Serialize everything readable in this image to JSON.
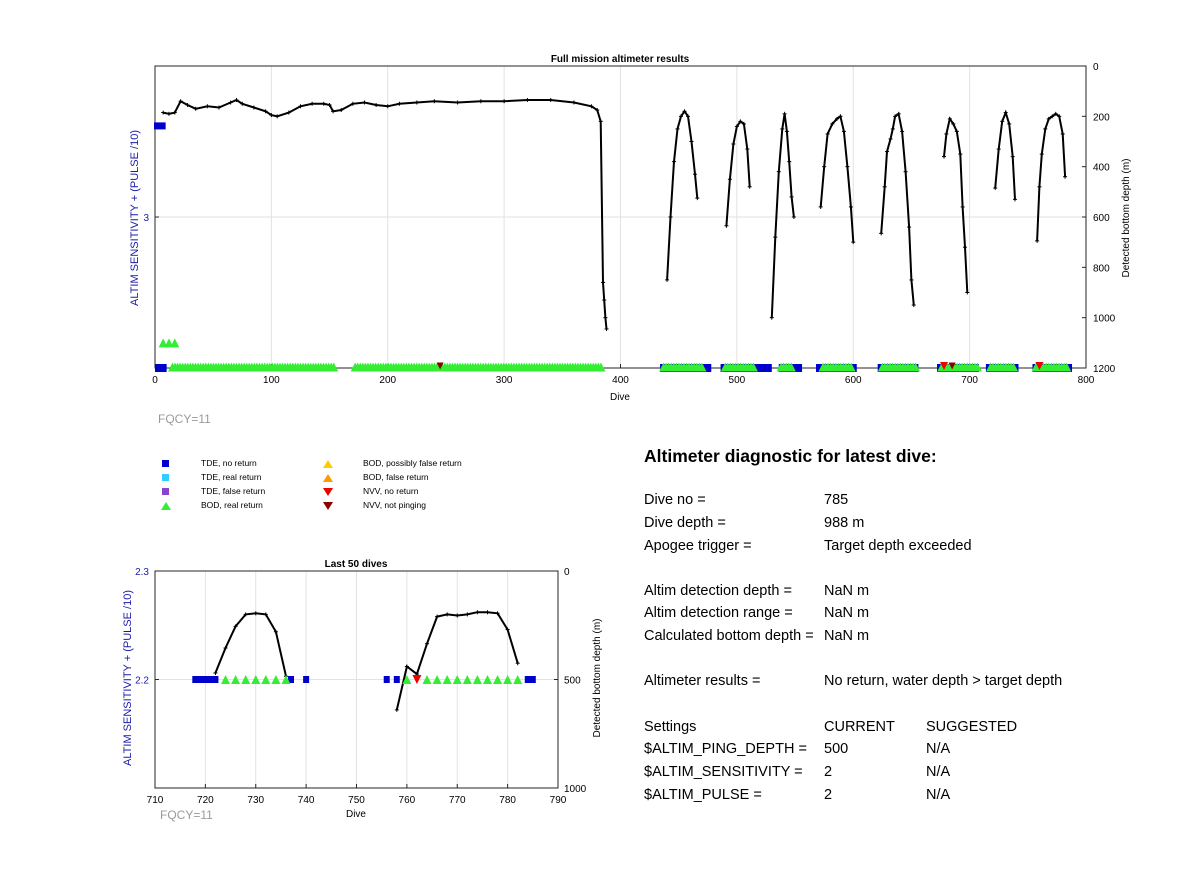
{
  "chart_data": [
    {
      "type": "scatter",
      "title": "Full mission altimeter results",
      "xlabel": "Dive",
      "ylabel_left": "ALTIM SENSITIVITY + (PULSE /10)",
      "ylabel_right": "Detected bottom depth (m)",
      "xlim": [
        0,
        800
      ],
      "ylim_left": [
        2.5,
        3.5
      ],
      "ylim_right": [
        0,
        1200
      ],
      "right_axis_reversed": true,
      "xticks": [
        "0",
        "100",
        "200",
        "300",
        "400",
        "500",
        "600",
        "700",
        "800"
      ],
      "yticks_left": [
        "3"
      ],
      "yticks_right": [
        "0",
        "200",
        "400",
        "600",
        "800",
        "1000",
        "1200"
      ],
      "grid": true,
      "fqcy_label": "FQCY=11",
      "bottom_depth_series": {
        "color": "#000000",
        "segments": [
          [
            [
              7,
              185
            ],
            [
              12,
              190
            ],
            [
              17,
              185
            ],
            [
              22,
              140
            ],
            [
              28,
              155
            ],
            [
              35,
              170
            ],
            [
              45,
              160
            ],
            [
              55,
              165
            ],
            [
              65,
              145
            ],
            [
              70,
              135
            ],
            [
              75,
              150
            ],
            [
              85,
              165
            ],
            [
              95,
              180
            ],
            [
              100,
              195
            ],
            [
              105,
              200
            ],
            [
              115,
              185
            ],
            [
              125,
              160
            ],
            [
              135,
              150
            ],
            [
              145,
              150
            ],
            [
              150,
              155
            ],
            [
              153,
              180
            ],
            [
              160,
              175
            ],
            [
              170,
              150
            ],
            [
              180,
              145
            ],
            [
              190,
              155
            ],
            [
              200,
              160
            ],
            [
              210,
              150
            ],
            [
              225,
              145
            ],
            [
              240,
              140
            ],
            [
              260,
              145
            ],
            [
              280,
              140
            ],
            [
              300,
              140
            ],
            [
              320,
              135
            ],
            [
              340,
              135
            ],
            [
              360,
              145
            ],
            [
              375,
              160
            ],
            [
              380,
              175
            ],
            [
              383,
              220
            ],
            [
              385,
              860
            ],
            [
              386,
              930
            ],
            [
              387,
              1000
            ],
            [
              388,
              1045
            ]
          ],
          [
            [
              440,
              850
            ],
            [
              443,
              600
            ],
            [
              446,
              380
            ],
            [
              449,
              250
            ],
            [
              452,
              200
            ],
            [
              455,
              180
            ],
            [
              458,
              200
            ],
            [
              461,
              300
            ],
            [
              464,
              430
            ],
            [
              466,
              525
            ]
          ],
          [
            [
              491,
              635
            ],
            [
              494,
              450
            ],
            [
              497,
              310
            ],
            [
              500,
              240
            ],
            [
              503,
              220
            ],
            [
              506,
              230
            ],
            [
              509,
              330
            ],
            [
              511,
              480
            ]
          ],
          [
            [
              530,
              1000
            ],
            [
              533,
              680
            ],
            [
              536,
              420
            ],
            [
              539,
              250
            ],
            [
              541,
              190
            ],
            [
              543,
              260
            ],
            [
              545,
              380
            ],
            [
              547,
              520
            ],
            [
              549,
              600
            ]
          ],
          [
            [
              572,
              560
            ],
            [
              575,
              400
            ],
            [
              578,
              270
            ],
            [
              582,
              230
            ],
            [
              586,
              210
            ],
            [
              589,
              200
            ],
            [
              592,
              260
            ],
            [
              595,
              400
            ],
            [
              598,
              560
            ],
            [
              600,
              700
            ]
          ],
          [
            [
              624,
              665
            ],
            [
              627,
              480
            ],
            [
              629,
              340
            ],
            [
              632,
              290
            ],
            [
              634,
              250
            ],
            [
              636,
              200
            ],
            [
              639,
              190
            ],
            [
              642,
              260
            ],
            [
              645,
              420
            ],
            [
              648,
              640
            ],
            [
              650,
              850
            ],
            [
              652,
              950
            ]
          ],
          [
            [
              678,
              360
            ],
            [
              680,
              270
            ],
            [
              683,
              210
            ],
            [
              686,
              230
            ],
            [
              689,
              260
            ],
            [
              692,
              350
            ],
            [
              694,
              560
            ],
            [
              696,
              720
            ],
            [
              698,
              900
            ]
          ],
          [
            [
              722,
              485
            ],
            [
              725,
              330
            ],
            [
              728,
              220
            ],
            [
              731,
              185
            ],
            [
              734,
              230
            ],
            [
              737,
              360
            ],
            [
              739,
              530
            ]
          ],
          [
            [
              758,
              695
            ],
            [
              760,
              480
            ],
            [
              762,
              350
            ],
            [
              765,
              250
            ],
            [
              768,
              210
            ],
            [
              771,
              200
            ],
            [
              774,
              190
            ],
            [
              777,
              200
            ],
            [
              780,
              270
            ],
            [
              782,
              440
            ]
          ]
        ]
      },
      "tde_no_return_segments": [
        [
          0,
          10
        ],
        [
          434,
          478
        ],
        [
          486,
          530
        ],
        [
          536,
          556
        ],
        [
          568,
          603
        ],
        [
          621,
          656
        ],
        [
          672,
          708
        ],
        [
          714,
          742
        ],
        [
          754,
          788
        ]
      ],
      "bod_real_return_ranges": [
        [
          15,
          155
        ],
        [
          172,
          385
        ],
        [
          437,
          472
        ],
        [
          490,
          516
        ],
        [
          538,
          549
        ],
        [
          574,
          599
        ],
        [
          625,
          654
        ],
        [
          676,
          707
        ],
        [
          718,
          738
        ],
        [
          757,
          785
        ]
      ],
      "bod_cluster_near": [
        [
          7,
          1100
        ],
        [
          12,
          1100
        ],
        [
          17,
          1100
        ]
      ],
      "nvv_no_return_x": [
        678,
        760
      ],
      "nvv_not_pinging_x": [
        245,
        685
      ]
    },
    {
      "type": "scatter",
      "title": "Last 50 dives",
      "xlabel": "Dive",
      "ylabel_left": "ALTIM SENSITIVITY + (PULSE /10)",
      "ylabel_right": "Detected bottom depth (m)",
      "xlim": [
        710,
        790
      ],
      "ylim_left": [
        2.1,
        2.3
      ],
      "ylim_right": [
        0,
        1000
      ],
      "right_axis_reversed": true,
      "xticks": [
        "710",
        "720",
        "730",
        "740",
        "750",
        "760",
        "770",
        "780",
        "790"
      ],
      "yticks_left": [
        "2.3",
        "2.2"
      ],
      "yticks_right": [
        "0",
        "500",
        "1000"
      ],
      "grid": true,
      "fqcy_label": "FQCY=11",
      "bottom_depth_series": {
        "color": "#000000",
        "segments": [
          [
            [
              722,
              470
            ],
            [
              724,
              355
            ],
            [
              726,
              255
            ],
            [
              728,
              200
            ],
            [
              730,
              195
            ],
            [
              732,
              200
            ],
            [
              734,
              280
            ],
            [
              736,
              485
            ]
          ],
          [
            [
              758,
              640
            ],
            [
              760,
              440
            ],
            [
              762,
              475
            ],
            [
              764,
              335
            ],
            [
              766,
              210
            ],
            [
              768,
              200
            ],
            [
              770,
              205
            ],
            [
              772,
              200
            ],
            [
              774,
              190
            ],
            [
              776,
              190
            ],
            [
              778,
              195
            ],
            [
              780,
              270
            ],
            [
              782,
              425
            ]
          ]
        ]
      },
      "tde_points_x": [
        718,
        719,
        720,
        721,
        722,
        737,
        740,
        756,
        758,
        784,
        785
      ],
      "bod_points_x": [
        724,
        726,
        728,
        730,
        732,
        734,
        736,
        760,
        764,
        766,
        768,
        770,
        772,
        774,
        776,
        778,
        780,
        782
      ],
      "nvv_no_return_x": [
        762
      ]
    }
  ],
  "legend": {
    "items": [
      {
        "label": "TDE, no return",
        "marker": "square",
        "color": "#0000cc"
      },
      {
        "label": "TDE, real return",
        "marker": "square",
        "color": "#33ccff"
      },
      {
        "label": "TDE, false return",
        "marker": "square",
        "color": "#8844cc"
      },
      {
        "label": "BOD, real return",
        "marker": "triangle-up",
        "color": "#33ee33"
      },
      {
        "label": "BOD, possibly false return",
        "marker": "triangle-up",
        "color": "#ffcc00"
      },
      {
        "label": "BOD, false return",
        "marker": "triangle-up",
        "color": "#ff9900"
      },
      {
        "label": "NVV, no return",
        "marker": "triangle-down",
        "color": "#ee0000"
      },
      {
        "label": "NVV, not pinging",
        "marker": "triangle-down",
        "color": "#880000"
      }
    ]
  },
  "diagnostic": {
    "title": "Altimeter diagnostic for latest dive:",
    "rows": [
      {
        "label": "Dive no =",
        "value": "785"
      },
      {
        "label": "Dive depth =",
        "value": "988 m"
      },
      {
        "label": "Apogee trigger =",
        "value": "Target depth exceeded"
      },
      {
        "label": "Altim detection depth =",
        "value": "NaN m"
      },
      {
        "label": "Altim detection range =",
        "value": "NaN m"
      },
      {
        "label": "Calculated bottom depth =",
        "value": "NaN m"
      },
      {
        "label": "Altimeter results =",
        "value": "No return, water depth > target depth"
      }
    ],
    "settings_header": {
      "label": "Settings",
      "current": "CURRENT",
      "suggested": "SUGGESTED"
    },
    "settings": [
      {
        "label": "$ALTIM_PING_DEPTH =",
        "current": "500",
        "suggested": "N/A"
      },
      {
        "label": "$ALTIM_SENSITIVITY =",
        "current": "2",
        "suggested": "N/A"
      },
      {
        "label": "$ALTIM_PULSE =",
        "current": "2",
        "suggested": "N/A"
      }
    ]
  },
  "colors": {
    "axis_left_label": "#1a1aaa",
    "fqcy": "#9a9a9a",
    "grid": "#e2e2e2",
    "depth_line": "#000000"
  }
}
